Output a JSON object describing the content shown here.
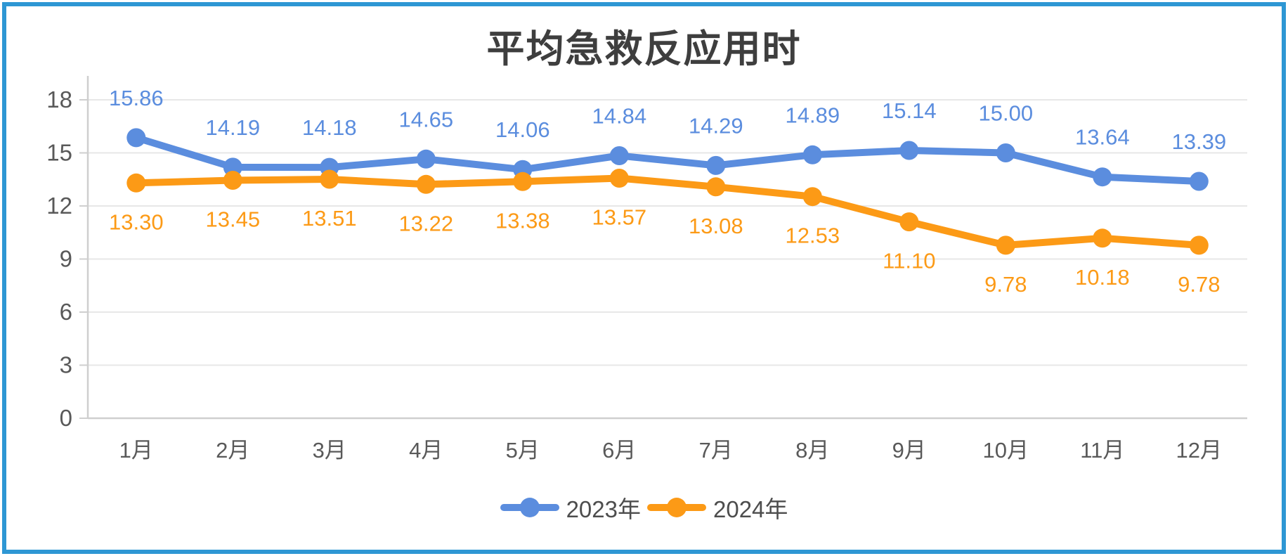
{
  "title": "平均急救反应用时",
  "colors": {
    "border": "#2E97D4",
    "series_2023": "#5B8DDE",
    "series_2024": "#FC9A16",
    "grid": "#E7E7E7",
    "axis": "#CFCFCF",
    "axis_text": "#595959",
    "title_text": "#3E3E3E",
    "legend_text": "#4D4D4D"
  },
  "chart_data": {
    "type": "line",
    "title": "平均急救反应用时",
    "categories": [
      "1月",
      "2月",
      "3月",
      "4月",
      "5月",
      "6月",
      "7月",
      "8月",
      "9月",
      "10月",
      "11月",
      "12月"
    ],
    "series": [
      {
        "name": "2023年",
        "color_key": "series_2023",
        "label_position": "above",
        "values": [
          15.86,
          14.19,
          14.18,
          14.65,
          14.06,
          14.84,
          14.29,
          14.89,
          15.14,
          15.0,
          13.64,
          13.39
        ]
      },
      {
        "name": "2024年",
        "color_key": "series_2024",
        "label_position": "below",
        "values": [
          13.3,
          13.45,
          13.51,
          13.22,
          13.38,
          13.57,
          13.08,
          12.53,
          11.1,
          9.78,
          10.18,
          9.78
        ]
      }
    ],
    "xlabel": "",
    "ylabel": "",
    "ylim": [
      0,
      18
    ],
    "y_ticks": [
      0,
      3,
      6,
      9,
      12,
      15,
      18
    ],
    "grid": "horizontal",
    "legend_position": "bottom",
    "data_labels": true,
    "value_format": "0.00"
  },
  "legend": {
    "items": [
      {
        "label": "2023年"
      },
      {
        "label": "2024年"
      }
    ]
  }
}
